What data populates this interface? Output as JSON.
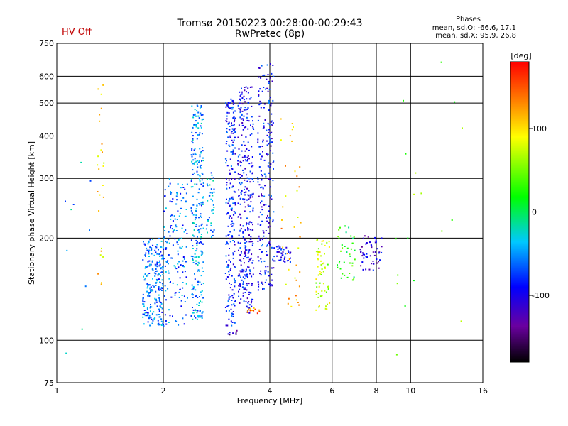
{
  "header": {
    "title": "Tromsø 20150223 00:28:00-00:29:43",
    "subtitle": "RwPretec (8p)",
    "hv_status": "HV Off",
    "hv_color": "#c00000"
  },
  "stats": {
    "heading": "Phases",
    "line_o": "mean, sd,O: -66.6, 17.1",
    "line_x": "mean, sd,X:  95.9, 26.8"
  },
  "colorbar": {
    "unit": "[deg]",
    "min": -180,
    "max": 180,
    "ticks": [
      100,
      0,
      -100
    ]
  },
  "chart_data": {
    "type": "scatter",
    "xlabel": "Frequency [MHz]",
    "ylabel": "Stationary phase Virtual Height [km]",
    "x_scale": "log",
    "y_scale": "log",
    "xlim": [
      1,
      16
    ],
    "ylim": [
      75,
      750
    ],
    "x_ticks": [
      1,
      2,
      4,
      6,
      8,
      10,
      16
    ],
    "y_ticks": [
      75,
      100,
      200,
      300,
      400,
      500,
      600,
      750
    ],
    "grid": true,
    "color_dimension": "phase [deg]",
    "clusters": [
      {
        "f": [
          1.75,
          2.0
        ],
        "h": [
          110,
          200
        ],
        "phase": -60,
        "n": 220
      },
      {
        "f": [
          2.0,
          2.35
        ],
        "h": [
          110,
          300
        ],
        "phase": -60,
        "n": 160
      },
      {
        "f": [
          2.4,
          2.6
        ],
        "h": [
          115,
          500
        ],
        "phase": -50,
        "n": 260
      },
      {
        "f": [
          2.65,
          2.8
        ],
        "h": [
          200,
          320
        ],
        "phase": -45,
        "n": 40
      },
      {
        "f": [
          3.0,
          3.2
        ],
        "h": [
          110,
          520
        ],
        "phase": -85,
        "n": 240
      },
      {
        "f": [
          3.25,
          3.6
        ],
        "h": [
          120,
          560
        ],
        "phase": -95,
        "n": 340
      },
      {
        "f": [
          3.7,
          4.1
        ],
        "h": [
          140,
          660
        ],
        "phase": -90,
        "n": 220
      },
      {
        "f": [
          4.1,
          4.6
        ],
        "h": [
          170,
          190
        ],
        "phase": -95,
        "n": 40
      },
      {
        "f": [
          4.3,
          4.9
        ],
        "h": [
          120,
          480
        ],
        "phase": 110,
        "n": 40
      },
      {
        "f": [
          5.4,
          5.9
        ],
        "h": [
          120,
          200
        ],
        "phase": 70,
        "n": 60
      },
      {
        "f": [
          6.2,
          7.0
        ],
        "h": [
          150,
          220
        ],
        "phase": 20,
        "n": 40
      },
      {
        "f": [
          7.2,
          8.3
        ],
        "h": [
          160,
          205
        ],
        "phase": -110,
        "n": 50
      },
      {
        "f": [
          3.05,
          3.25
        ],
        "h": [
          103,
          107
        ],
        "phase": -130,
        "n": 8
      },
      {
        "f": [
          3.45,
          3.75
        ],
        "h": [
          120,
          125
        ],
        "phase": 140,
        "n": 12
      },
      {
        "f": [
          1.3,
          1.36
        ],
        "h": [
          130,
          620
        ],
        "phase": 100,
        "n": 26
      },
      {
        "f": [
          1.05,
          1.25
        ],
        "h": [
          80,
          400
        ],
        "phase": -40,
        "n": 10
      },
      {
        "f": [
          9.0,
          14.0
        ],
        "h": [
          90,
          680
        ],
        "phase": 40,
        "n": 18
      }
    ]
  }
}
